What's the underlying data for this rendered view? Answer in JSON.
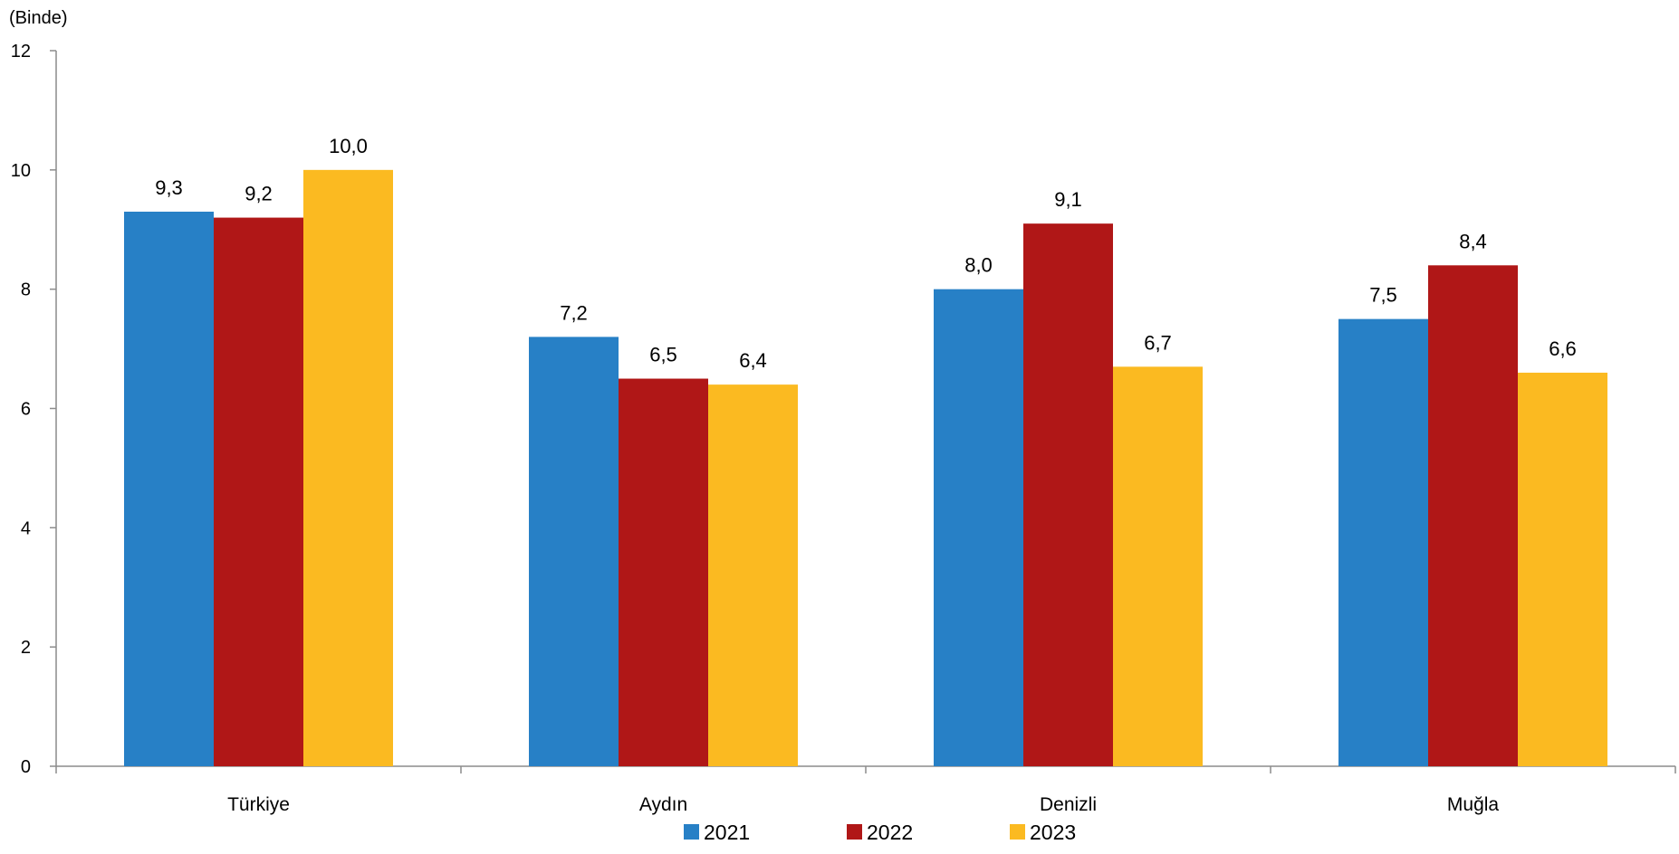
{
  "chart_data": {
    "type": "bar",
    "unit_label": "(Binde)",
    "categories": [
      "Türkiye",
      "Aydın",
      "Denizli",
      "Muğla"
    ],
    "series": [
      {
        "name": "2021",
        "color": "#2780C6",
        "values": [
          9.3,
          7.2,
          8.0,
          7.5
        ],
        "labels": [
          "9,3",
          "7,2",
          "8,0",
          "7,5"
        ]
      },
      {
        "name": "2022",
        "color": "#B01717",
        "values": [
          9.2,
          6.5,
          9.1,
          8.4
        ],
        "labels": [
          "9,2",
          "6,5",
          "9,1",
          "8,4"
        ]
      },
      {
        "name": "2023",
        "color": "#FBBA21",
        "values": [
          10.0,
          6.4,
          6.7,
          6.6
        ],
        "labels": [
          "10,0",
          "6,4",
          "6,7",
          "6,6"
        ]
      }
    ],
    "ylim": [
      0,
      12
    ],
    "yticks": [
      0,
      2,
      4,
      6,
      8,
      10,
      12
    ],
    "yticklabels": [
      "0",
      "2",
      "4",
      "6",
      "8",
      "10",
      "12"
    ],
    "grid": false,
    "legend": "bottom"
  }
}
